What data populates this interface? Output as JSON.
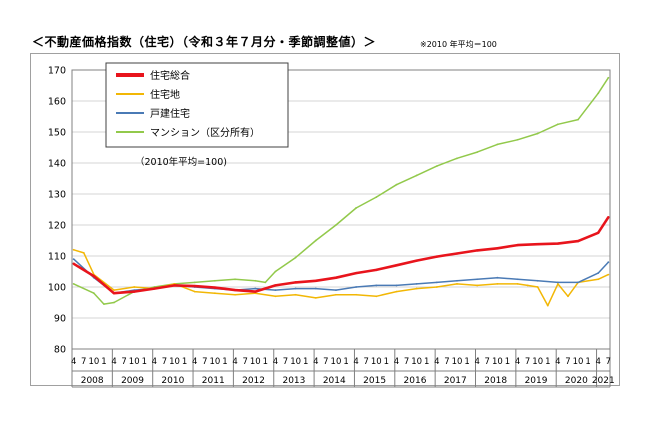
{
  "header": {
    "title": "＜不動産価格指数（住宅）（令和３年７月分・季節調整値）＞",
    "note": "※2010 年平均＝100"
  },
  "chart_data": {
    "type": "line",
    "title": "＜不動産価格指数（住宅）（令和３年７月分・季節調整値）＞",
    "subtitle": "※2010 年平均＝100",
    "annotation": "（2010年平均=100)",
    "ylim": [
      80,
      170
    ],
    "yticks": [
      80,
      90,
      100,
      110,
      120,
      130,
      140,
      150,
      160,
      170
    ],
    "years": [
      "2008",
      "2009",
      "2010",
      "2011",
      "2012",
      "2013",
      "2014",
      "2015",
      "2016",
      "2017",
      "2018",
      "2019",
      "2020",
      "2021"
    ],
    "months_per_year": [
      "4",
      "7",
      "10",
      "1"
    ],
    "last_year_months": [
      "4",
      "7"
    ],
    "grid": true,
    "legend_position": "top-left",
    "colors": {
      "総合": "#e8141c",
      "住宅地": "#f2b705",
      "戸建住宅": "#4a7ab5",
      "マンション": "#92c94b"
    },
    "series": [
      {
        "name": "住宅総合",
        "color": "#e8141c",
        "x": [
          "2008-04",
          "2008-10",
          "2009-04",
          "2009-10",
          "2010-04",
          "2010-10",
          "2011-04",
          "2011-10",
          "2012-04",
          "2012-10",
          "2013-04",
          "2013-10",
          "2014-04",
          "2014-10",
          "2015-04",
          "2015-10",
          "2016-04",
          "2016-10",
          "2017-04",
          "2017-10",
          "2018-04",
          "2018-10",
          "2019-04",
          "2019-10",
          "2020-04",
          "2020-10",
          "2021-04",
          "2021-07"
        ],
        "values": [
          107.5,
          103.5,
          98.0,
          98.5,
          99.5,
          100.5,
          100.3,
          99.8,
          99.0,
          98.5,
          100.5,
          101.5,
          102.0,
          103.0,
          104.5,
          105.5,
          107.0,
          108.5,
          109.8,
          110.8,
          111.8,
          112.5,
          113.5,
          113.8,
          114.0,
          114.8,
          117.5,
          122.5
        ]
      },
      {
        "name": "住宅地",
        "color": "#f2b705",
        "x": [
          "2008-04",
          "2008-07",
          "2008-10",
          "2009-04",
          "2009-10",
          "2010-04",
          "2010-10",
          "2011-04",
          "2011-10",
          "2012-04",
          "2012-10",
          "2013-04",
          "2013-10",
          "2014-04",
          "2014-10",
          "2015-04",
          "2015-10",
          "2016-04",
          "2016-10",
          "2017-04",
          "2017-10",
          "2018-04",
          "2018-10",
          "2019-04",
          "2019-07",
          "2019-10",
          "2020-01",
          "2020-04",
          "2020-07",
          "2020-10",
          "2021-04",
          "2021-07"
        ],
        "values": [
          112.0,
          111.0,
          104.0,
          99.0,
          100.0,
          99.5,
          101.0,
          98.5,
          98.0,
          97.5,
          98.0,
          97.0,
          97.5,
          96.5,
          97.5,
          97.5,
          97.0,
          98.5,
          99.5,
          100.0,
          101.0,
          100.5,
          101.0,
          101.0,
          100.5,
          100.0,
          94.0,
          101.0,
          97.0,
          101.5,
          102.5,
          104.0
        ]
      },
      {
        "name": "戸建住宅",
        "color": "#4a7ab5",
        "x": [
          "2008-04",
          "2008-10",
          "2009-04",
          "2009-10",
          "2010-04",
          "2010-10",
          "2011-04",
          "2011-10",
          "2012-04",
          "2012-10",
          "2013-04",
          "2013-10",
          "2014-04",
          "2014-10",
          "2015-04",
          "2015-10",
          "2016-04",
          "2016-10",
          "2017-04",
          "2017-10",
          "2018-04",
          "2018-10",
          "2019-04",
          "2019-10",
          "2020-04",
          "2020-10",
          "2021-04",
          "2021-07"
        ],
        "values": [
          109.0,
          103.0,
          98.0,
          99.0,
          99.5,
          100.5,
          100.0,
          99.5,
          99.0,
          99.5,
          99.0,
          99.5,
          99.5,
          99.0,
          100.0,
          100.5,
          100.5,
          101.0,
          101.5,
          102.0,
          102.5,
          103.0,
          102.5,
          102.0,
          101.5,
          101.5,
          104.5,
          108.0
        ]
      },
      {
        "name": "マンション（区分所有）",
        "color": "#92c94b",
        "x": [
          "2008-04",
          "2008-10",
          "2009-01",
          "2009-04",
          "2009-10",
          "2010-04",
          "2010-10",
          "2011-04",
          "2011-10",
          "2012-04",
          "2012-10",
          "2013-01",
          "2013-04",
          "2013-10",
          "2014-04",
          "2014-10",
          "2015-04",
          "2015-10",
          "2016-04",
          "2016-10",
          "2017-04",
          "2017-10",
          "2018-04",
          "2018-10",
          "2019-04",
          "2019-10",
          "2020-04",
          "2020-10",
          "2021-04",
          "2021-07"
        ],
        "values": [
          101.0,
          98.0,
          94.5,
          95.0,
          98.5,
          100.0,
          101.0,
          101.5,
          102.0,
          102.5,
          102.0,
          101.5,
          105.0,
          109.5,
          115.0,
          120.0,
          125.5,
          129.0,
          133.0,
          136.0,
          139.0,
          141.5,
          143.5,
          146.0,
          147.5,
          149.5,
          152.5,
          154.0,
          162.5,
          167.5
        ]
      }
    ]
  }
}
